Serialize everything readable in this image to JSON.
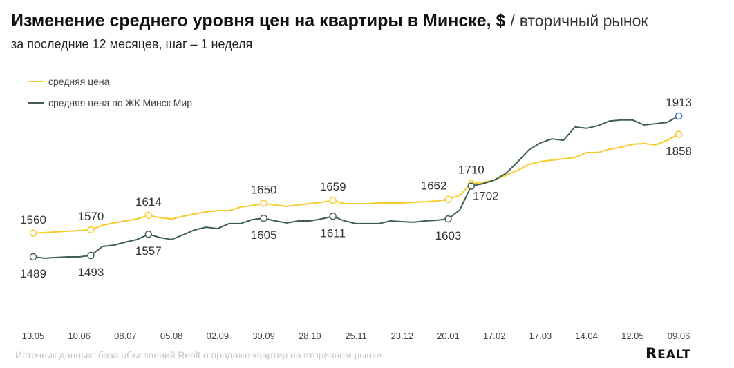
{
  "title": {
    "main": "Изменение среднего уровня цен на квартиры в Минске, $",
    "slash": "/",
    "suffix": "вторичный рынок"
  },
  "subtitle": "за последние 12 месяцев, шаг – 1 неделя",
  "source": "Источник данных: база объявлений Realt о продаже квартир на вторичном рынке",
  "logo": "REALT",
  "colors": {
    "avg": "#f8c92a",
    "zk": "#3e5f50",
    "last_marker": "#4a70c8"
  },
  "chart_data": {
    "type": "line",
    "title": "Изменение среднего уровня цен на квартиры в Минске, $",
    "x_tick_labels": [
      "13.05",
      "10.06",
      "08.07",
      "05.08",
      "02.09",
      "30.09",
      "28.10",
      "25.11",
      "23.12",
      "20.01",
      "17.02",
      "17.03",
      "14.04",
      "12.05",
      "09.06"
    ],
    "x_tick_every": 4,
    "ylim": [
      1440,
      1940
    ],
    "grid": false,
    "legend_position": "top-left",
    "series": [
      {
        "name": "средняя цена",
        "color": "#f8c92a",
        "values": [
          1560,
          1562,
          1564,
          1566,
          1568,
          1570,
          1584,
          1591,
          1597,
          1603,
          1614,
          1607,
          1603,
          1611,
          1618,
          1624,
          1628,
          1628,
          1639,
          1643,
          1650,
          1645,
          1641,
          1645,
          1649,
          1653,
          1659,
          1649,
          1649,
          1649,
          1651,
          1651,
          1651,
          1653,
          1655,
          1657,
          1662,
          1674,
          1710,
          1713,
          1720,
          1734,
          1749,
          1767,
          1776,
          1780,
          1784,
          1788,
          1803,
          1803,
          1813,
          1819,
          1828,
          1830,
          1826,
          1840,
          1858
        ],
        "labels": [
          {
            "i": 0,
            "text": "1560",
            "pos": "above"
          },
          {
            "i": 5,
            "text": "1570",
            "pos": "above"
          },
          {
            "i": 10,
            "text": "1614",
            "pos": "above"
          },
          {
            "i": 20,
            "text": "1650",
            "pos": "above"
          },
          {
            "i": 26,
            "text": "1659",
            "pos": "above"
          },
          {
            "i": 36,
            "text": "1662",
            "pos": "above-left"
          },
          {
            "i": 38,
            "text": "1710",
            "pos": "above"
          },
          {
            "i": 56,
            "text": "1858",
            "pos": "below"
          }
        ]
      },
      {
        "name": "средняя цена по ЖК Минск Мир",
        "color": "#3e5f50",
        "values": [
          1489,
          1485,
          1487,
          1489,
          1489,
          1493,
          1520,
          1524,
          1533,
          1541,
          1557,
          1547,
          1541,
          1555,
          1570,
          1578,
          1574,
          1589,
          1589,
          1601,
          1605,
          1597,
          1591,
          1597,
          1597,
          1603,
          1611,
          1597,
          1589,
          1589,
          1589,
          1597,
          1595,
          1593,
          1597,
          1599,
          1603,
          1630,
          1702,
          1709,
          1720,
          1740,
          1774,
          1811,
          1832,
          1844,
          1840,
          1880,
          1876,
          1884,
          1898,
          1901,
          1901,
          1886,
          1890,
          1894,
          1913
        ],
        "labels": [
          {
            "i": 0,
            "text": "1489",
            "pos": "below"
          },
          {
            "i": 5,
            "text": "1493",
            "pos": "below"
          },
          {
            "i": 10,
            "text": "1557",
            "pos": "below"
          },
          {
            "i": 20,
            "text": "1605",
            "pos": "below"
          },
          {
            "i": 26,
            "text": "1611",
            "pos": "below"
          },
          {
            "i": 36,
            "text": "1603",
            "pos": "below"
          },
          {
            "i": 38,
            "text": "1702",
            "pos": "below-right"
          },
          {
            "i": 56,
            "text": "1913",
            "pos": "above"
          }
        ]
      }
    ]
  }
}
